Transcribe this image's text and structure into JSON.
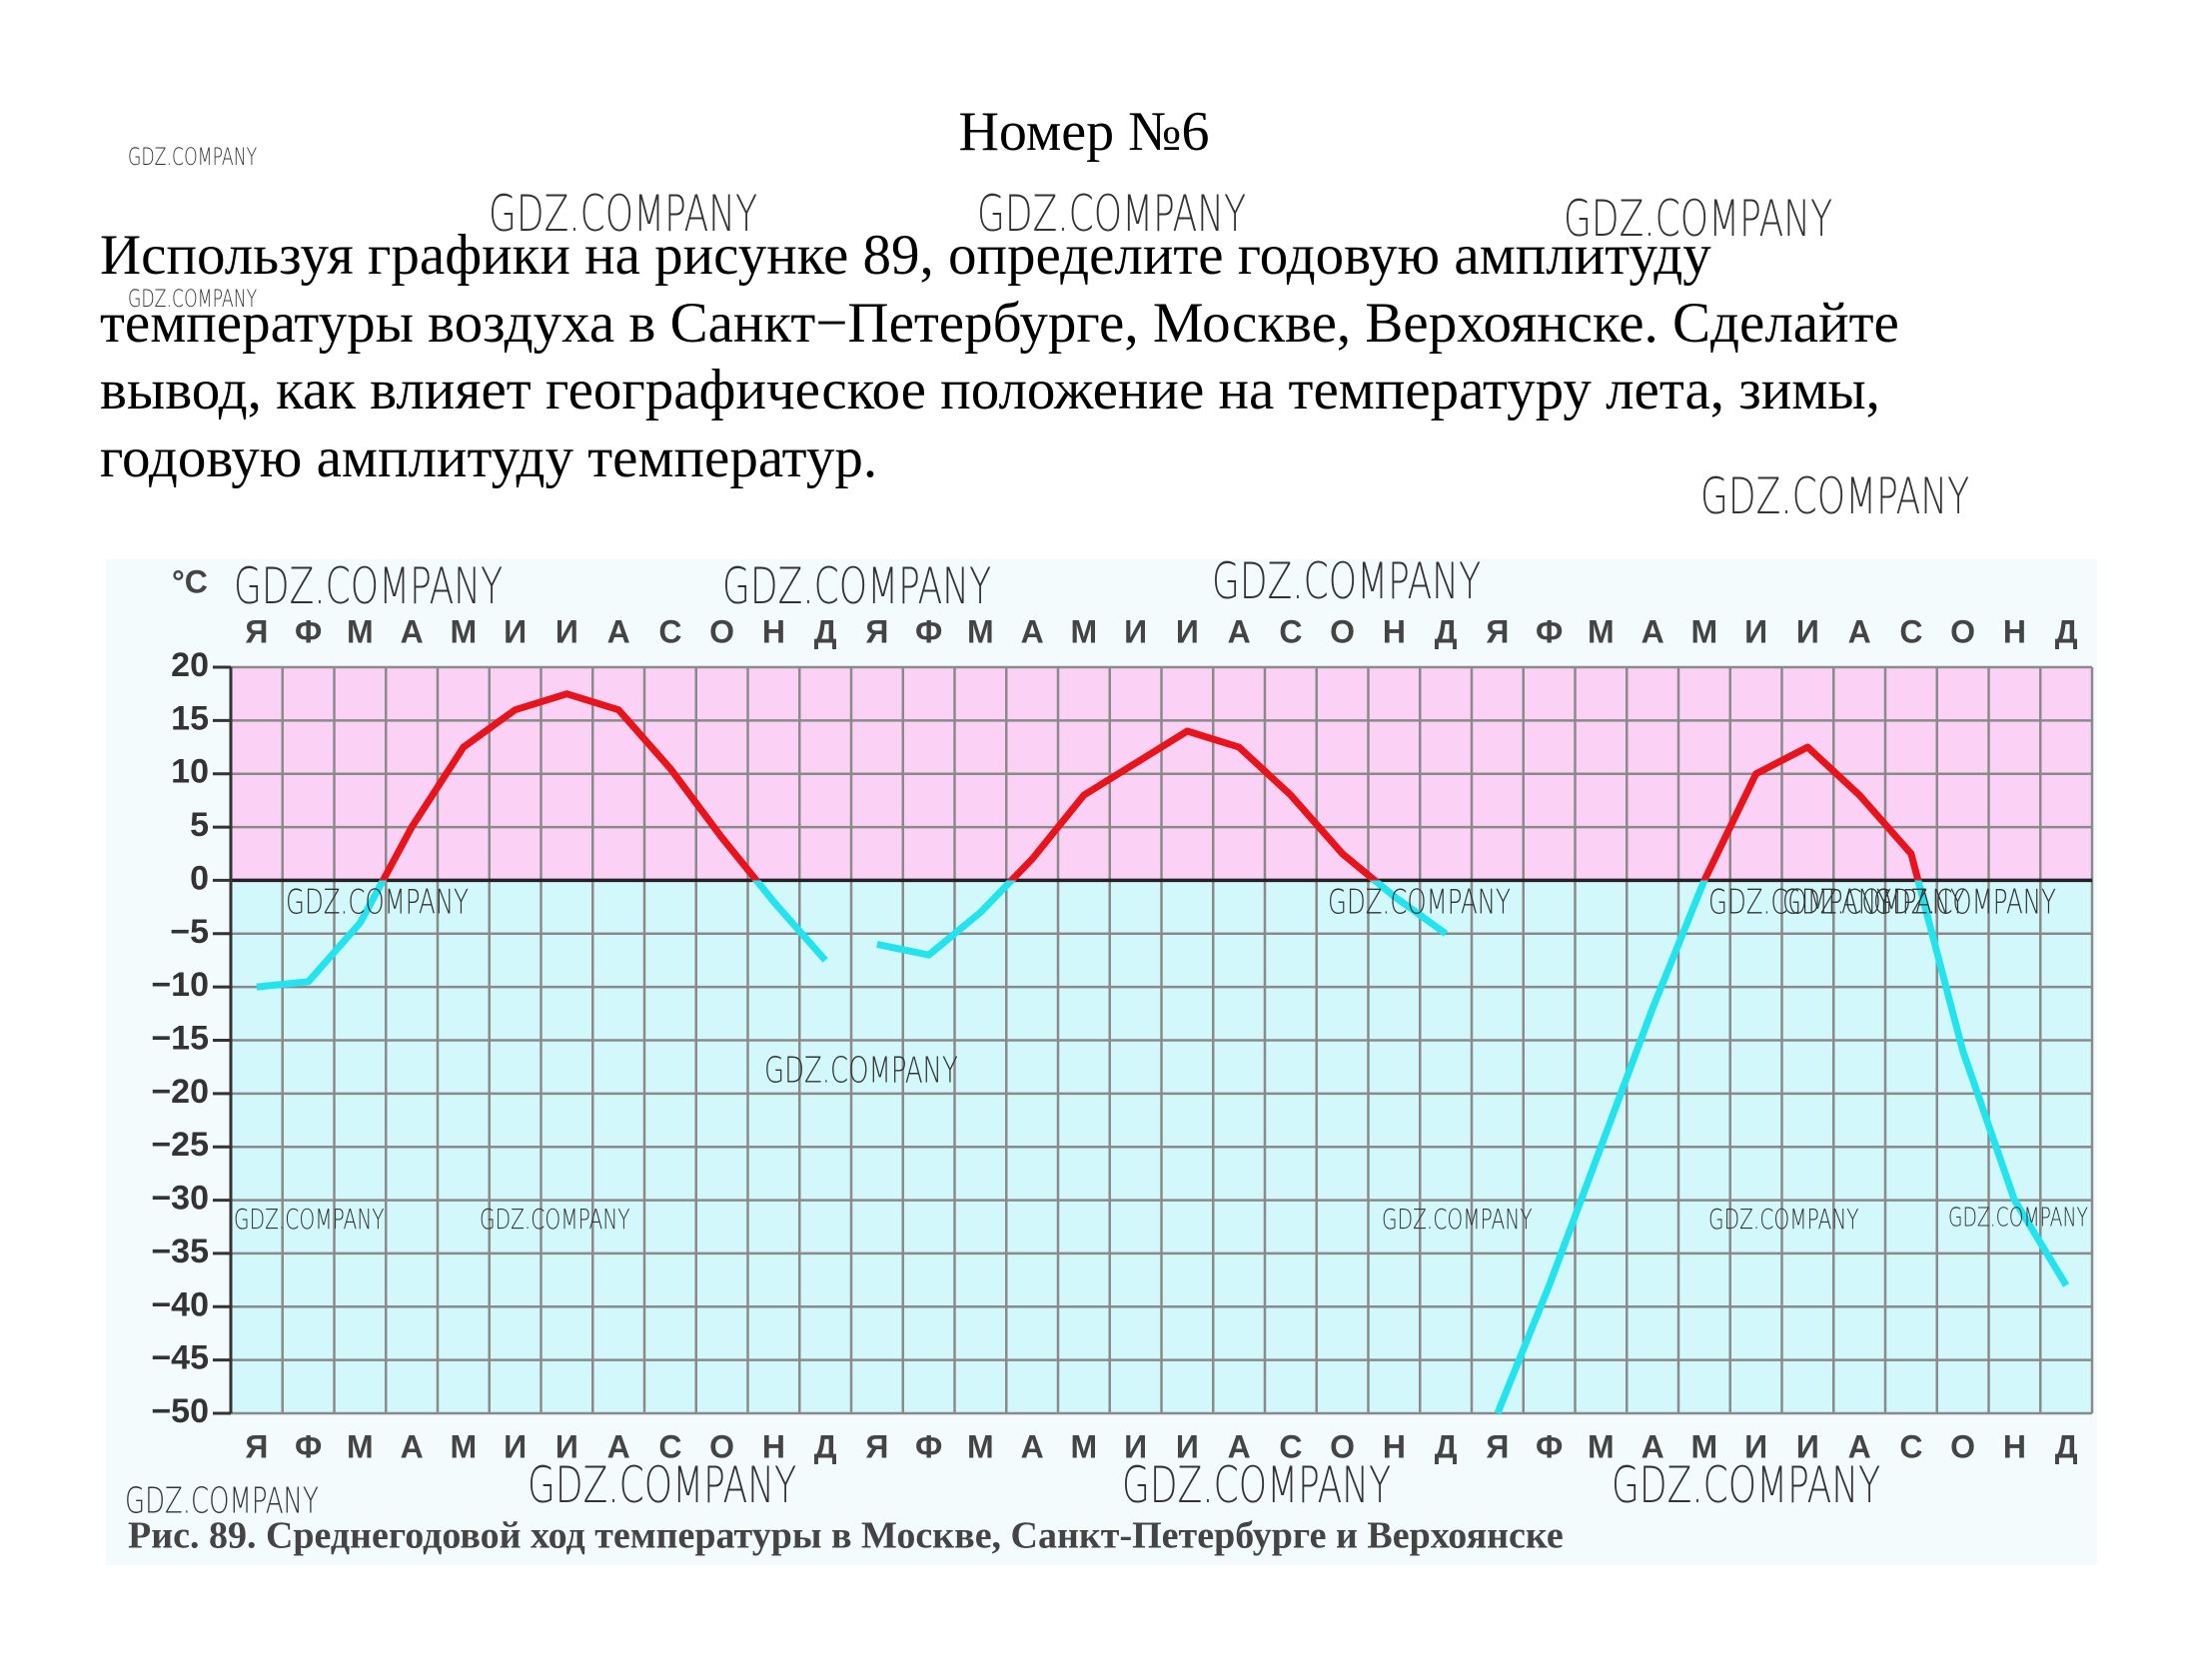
{
  "header": {
    "title": "Номер №6"
  },
  "text": [
    "Используя графики на рисунке 89, определите годовую амплитуду",
    "температуры воздуха в Санкт−Петербурге, Москве, Верхоянске. Сделайте",
    "вывод, как влияет географическое положение на температуру лета, зимы,",
    "годовую амплитуду температур."
  ],
  "watermark": "GDZ.COMPANY",
  "chart_data": {
    "type": "line",
    "caption": "Рис. 89. Среднегодовой ход температуры в Москве, Санкт-Петербурге и Верхоянске",
    "y_label": "°C",
    "categories": [
      "Я",
      "Ф",
      "М",
      "А",
      "М",
      "И",
      "И",
      "А",
      "С",
      "О",
      "Н",
      "Д"
    ],
    "ylim": [
      -50,
      20
    ],
    "yticks": [
      {
        "value": -50,
        "label": "−50"
      },
      {
        "value": -45,
        "label": "−45"
      },
      {
        "value": -40,
        "label": "−40"
      },
      {
        "value": -35,
        "label": "−35"
      },
      {
        "value": -30,
        "label": "−30"
      },
      {
        "value": -25,
        "label": "−25"
      },
      {
        "value": -20,
        "label": "−20"
      },
      {
        "value": -15,
        "label": "−15"
      },
      {
        "value": -10,
        "label": "−10"
      },
      {
        "value": -5,
        "label": "−5"
      },
      0,
      5,
      10,
      15,
      20
    ],
    "grid": true,
    "color_above": "#e8141c",
    "color_below": "#22e3ee",
    "series": [
      {
        "values": [
          -10,
          -9.5,
          -4,
          5,
          12.5,
          16,
          17.5,
          16,
          10.5,
          4,
          -2,
          -7.5
        ]
      },
      {
        "values": [
          -6,
          -7,
          -3,
          2,
          8,
          11,
          14,
          12.5,
          8,
          2.5,
          -1.5,
          -5
        ]
      },
      {
        "values": [
          -50,
          -38,
          -25,
          -12,
          0,
          10,
          12.5,
          8,
          2.5,
          -16,
          -30,
          -38
        ]
      }
    ]
  }
}
